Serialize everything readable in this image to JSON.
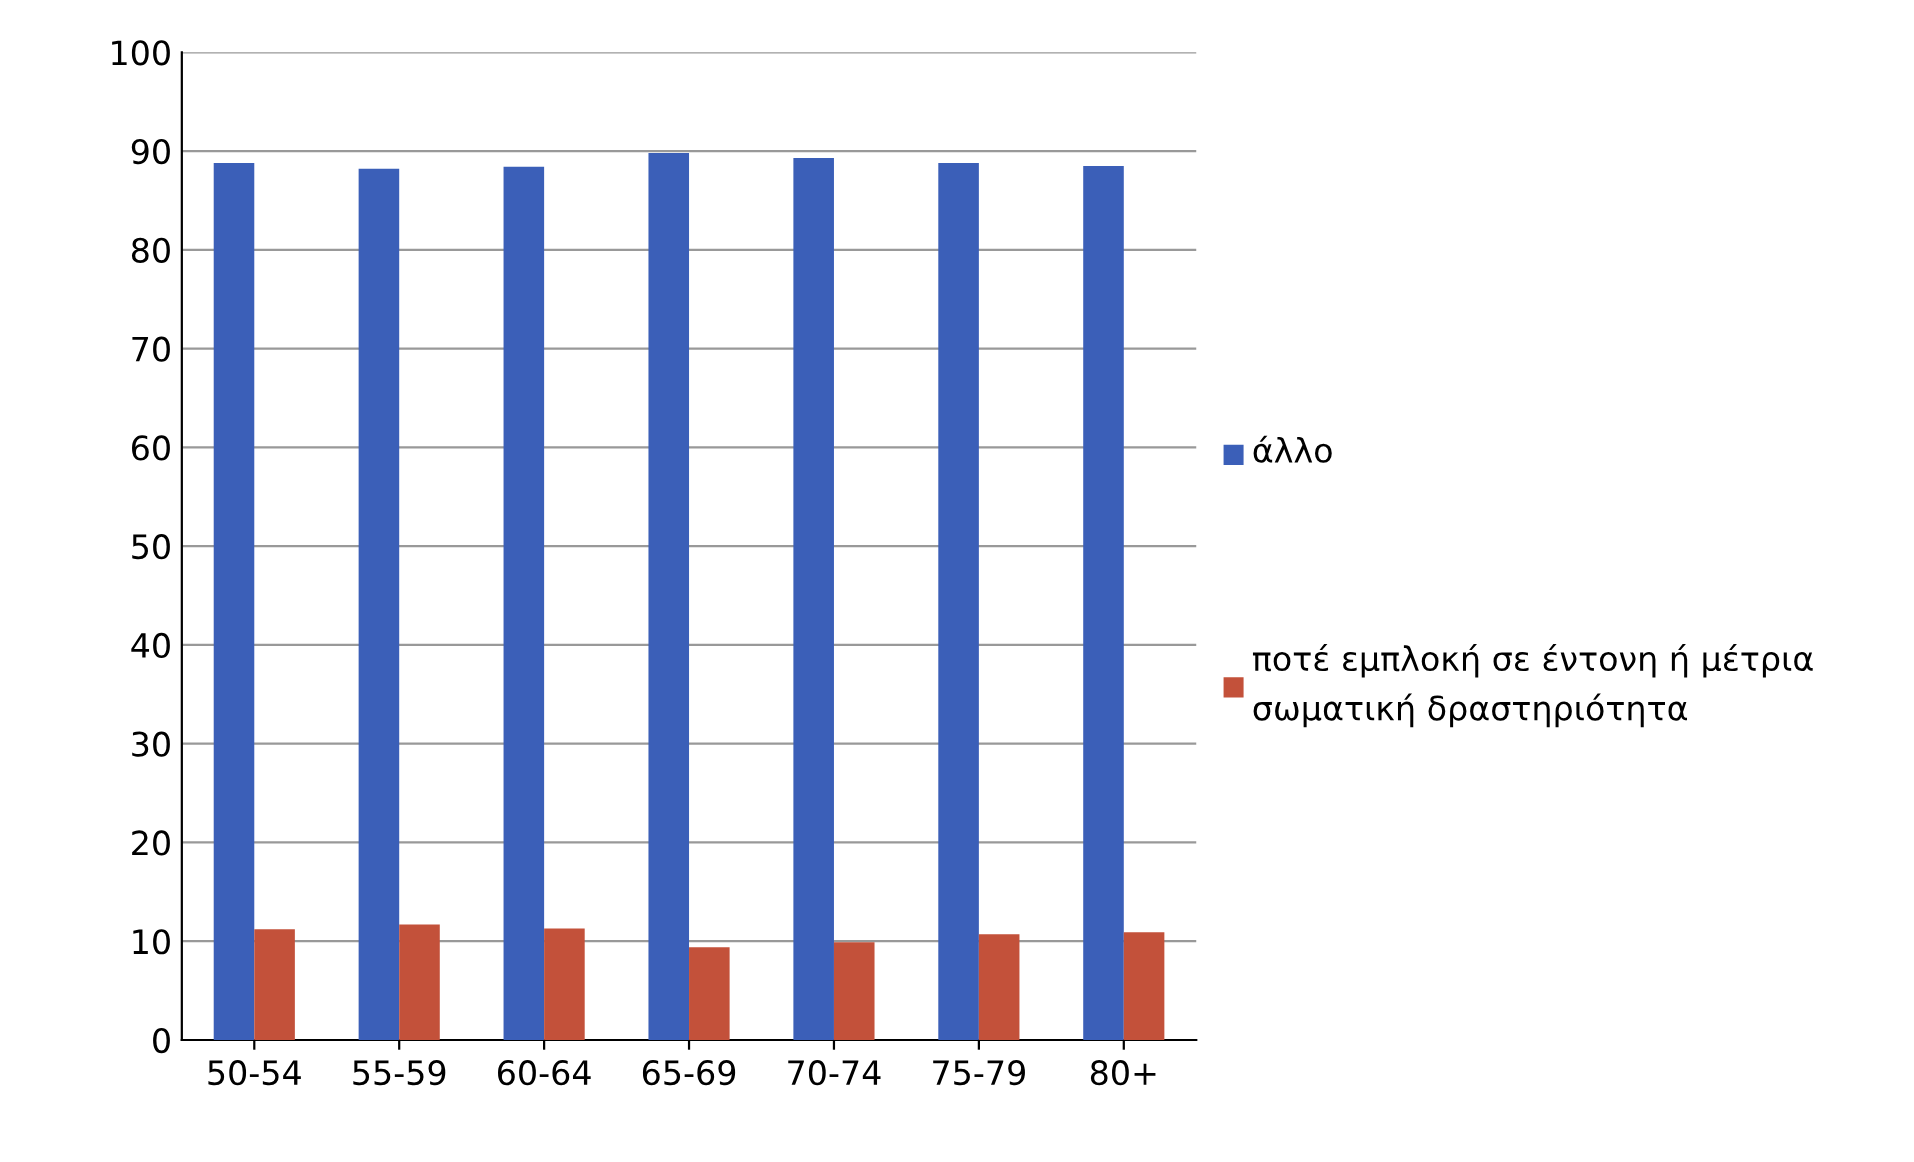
{
  "chart_data": {
    "type": "bar",
    "categories": [
      "50-54",
      "55-59",
      "60-64",
      "65-69",
      "70-74",
      "75-79",
      "80+"
    ],
    "series": [
      {
        "name": "άλλο",
        "color": "#3b5fb8",
        "values": [
          88.8,
          88.2,
          88.4,
          89.8,
          89.3,
          88.8,
          88.5
        ]
      },
      {
        "name": "ποτέ εμπλοκή σε έντονη ή μέτρια σωματική δραστηριότητα",
        "color": "#c3513a",
        "values": [
          11.2,
          11.7,
          11.3,
          9.4,
          9.9,
          10.7,
          10.9
        ]
      }
    ],
    "ylim": [
      0,
      100
    ],
    "yticks": [
      0,
      10,
      20,
      30,
      40,
      50,
      60,
      70,
      80,
      90,
      100
    ],
    "grid": "y",
    "legend": "right"
  }
}
